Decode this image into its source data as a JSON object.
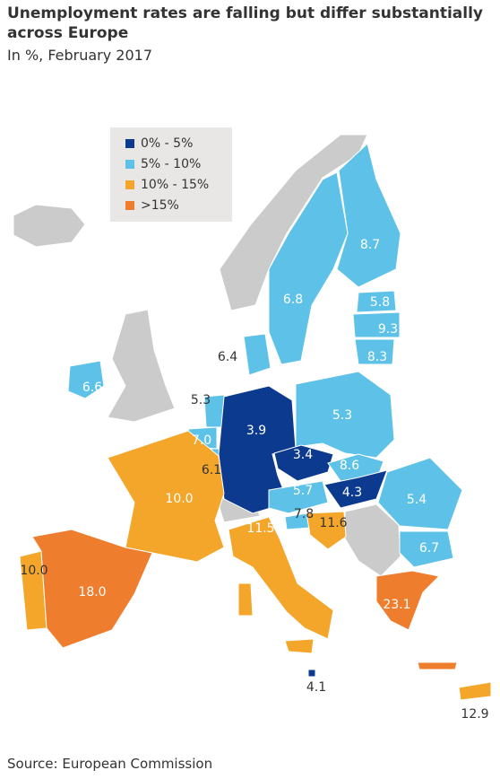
{
  "header": {
    "title": "Unemployment rates are falling but differ substantially across Europe",
    "subtitle": "In %, February 2017"
  },
  "legend": {
    "items": [
      {
        "label": "0% - 5%",
        "color": "#0c3a8f"
      },
      {
        "label": "5% - 10%",
        "color": "#5ec2e8"
      },
      {
        "label": "10% - 15%",
        "color": "#f4a62a"
      },
      {
        "label": ">15%",
        "color": "#ef7d2e"
      }
    ]
  },
  "map": {
    "labels": [
      "8.7",
      "6.8",
      "5.8",
      "9.3",
      "8.3",
      "6.4",
      "6.6",
      "5.3",
      "7.0",
      "6.1",
      "3.9",
      "5.3",
      "3.4",
      "8.6",
      "4.3",
      "5.7",
      "10.0",
      "11.5",
      "7.8",
      "11.6",
      "5.4",
      "6.7",
      "10.0",
      "18.0",
      "23.1",
      "4.1",
      "12.9"
    ]
  },
  "footer": {
    "source": "Source: European Commission"
  }
}
